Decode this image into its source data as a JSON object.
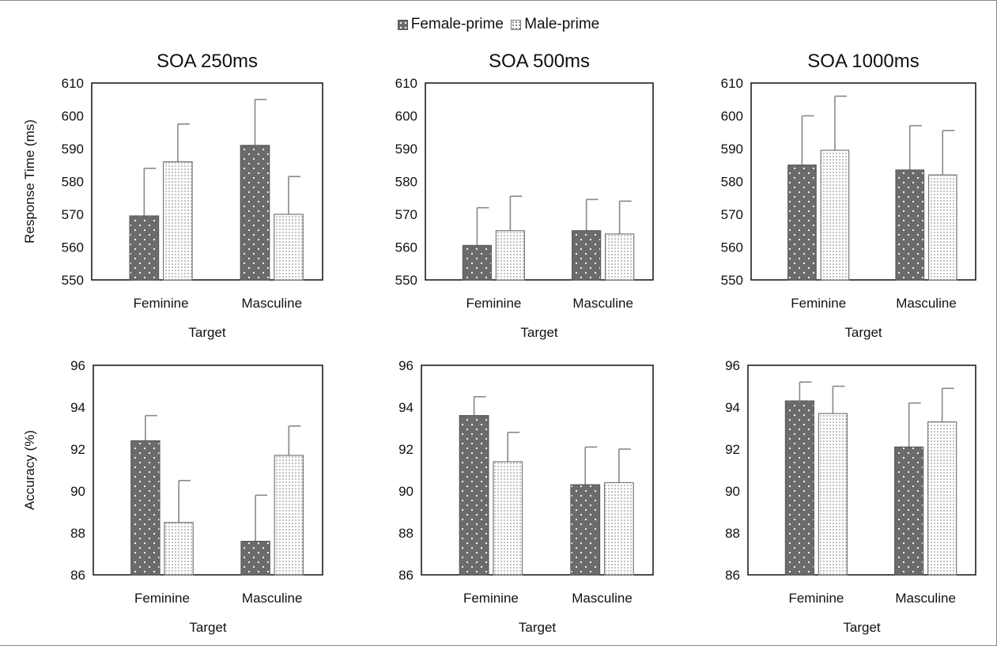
{
  "legend": {
    "items": [
      {
        "label": "Female-prime",
        "key": "female"
      },
      {
        "label": "Male-prime",
        "key": "male"
      }
    ]
  },
  "colors": {
    "female_fill": "#6b6b6b",
    "male_fill": "#ffffff",
    "error_bar": "#888888",
    "axis": "#111111"
  },
  "chart_data": [
    {
      "type": "bar",
      "panel": "rt-250",
      "title": "SOA 250ms",
      "xlabel": "Target",
      "ylabel": "Response Time (ms)",
      "categories": [
        "Feminine",
        "Masculine"
      ],
      "ylim": [
        550,
        610
      ],
      "yticks": [
        550,
        560,
        570,
        580,
        590,
        600,
        610
      ],
      "series": [
        {
          "name": "Female-prime",
          "values": [
            569.5,
            591
          ],
          "errors": [
            14.5,
            14
          ]
        },
        {
          "name": "Male-prime",
          "values": [
            586,
            570
          ],
          "errors": [
            11.5,
            11.5
          ]
        }
      ]
    },
    {
      "type": "bar",
      "panel": "rt-500",
      "title": "SOA 500ms",
      "xlabel": "Target",
      "ylabel": "",
      "categories": [
        "Feminine",
        "Masculine"
      ],
      "ylim": [
        550,
        610
      ],
      "yticks": [
        550,
        560,
        570,
        580,
        590,
        600,
        610
      ],
      "series": [
        {
          "name": "Female-prime",
          "values": [
            560.5,
            565
          ],
          "errors": [
            11.5,
            9.5
          ]
        },
        {
          "name": "Male-prime",
          "values": [
            565,
            564
          ],
          "errors": [
            10.5,
            10
          ]
        }
      ]
    },
    {
      "type": "bar",
      "panel": "rt-1000",
      "title": "SOA 1000ms",
      "xlabel": "Target",
      "ylabel": "",
      "categories": [
        "Feminine",
        "Masculine"
      ],
      "ylim": [
        550,
        610
      ],
      "yticks": [
        550,
        560,
        570,
        580,
        590,
        600,
        610
      ],
      "series": [
        {
          "name": "Female-prime",
          "values": [
            585,
            583.5
          ],
          "errors": [
            15,
            13.5
          ]
        },
        {
          "name": "Male-prime",
          "values": [
            589.5,
            582
          ],
          "errors": [
            16.5,
            13.5
          ]
        }
      ]
    },
    {
      "type": "bar",
      "panel": "acc-250",
      "title": "",
      "xlabel": "Target",
      "ylabel": "Accuracy (%)",
      "categories": [
        "Feminine",
        "Masculine"
      ],
      "ylim": [
        86,
        96
      ],
      "yticks": [
        86,
        88,
        90,
        92,
        94,
        96
      ],
      "series": [
        {
          "name": "Female-prime",
          "values": [
            92.4,
            87.6
          ],
          "errors": [
            1.2,
            2.2
          ]
        },
        {
          "name": "Male-prime",
          "values": [
            88.5,
            91.7
          ],
          "errors": [
            2.0,
            1.4
          ]
        }
      ]
    },
    {
      "type": "bar",
      "panel": "acc-500",
      "title": "",
      "xlabel": "Target",
      "ylabel": "",
      "categories": [
        "Feminine",
        "Masculine"
      ],
      "ylim": [
        86,
        96
      ],
      "yticks": [
        86,
        88,
        90,
        92,
        94,
        96
      ],
      "series": [
        {
          "name": "Female-prime",
          "values": [
            93.6,
            90.3
          ],
          "errors": [
            0.9,
            1.8
          ]
        },
        {
          "name": "Male-prime",
          "values": [
            91.4,
            90.4
          ],
          "errors": [
            1.4,
            1.6
          ]
        }
      ]
    },
    {
      "type": "bar",
      "panel": "acc-1000",
      "title": "",
      "xlabel": "Target",
      "ylabel": "",
      "categories": [
        "Feminine",
        "Masculine"
      ],
      "ylim": [
        86,
        96
      ],
      "yticks": [
        86,
        88,
        90,
        92,
        94,
        96
      ],
      "series": [
        {
          "name": "Female-prime",
          "values": [
            94.3,
            92.1
          ],
          "errors": [
            0.9,
            2.1
          ]
        },
        {
          "name": "Male-prime",
          "values": [
            93.7,
            93.3
          ],
          "errors": [
            1.3,
            1.6
          ]
        }
      ]
    }
  ]
}
